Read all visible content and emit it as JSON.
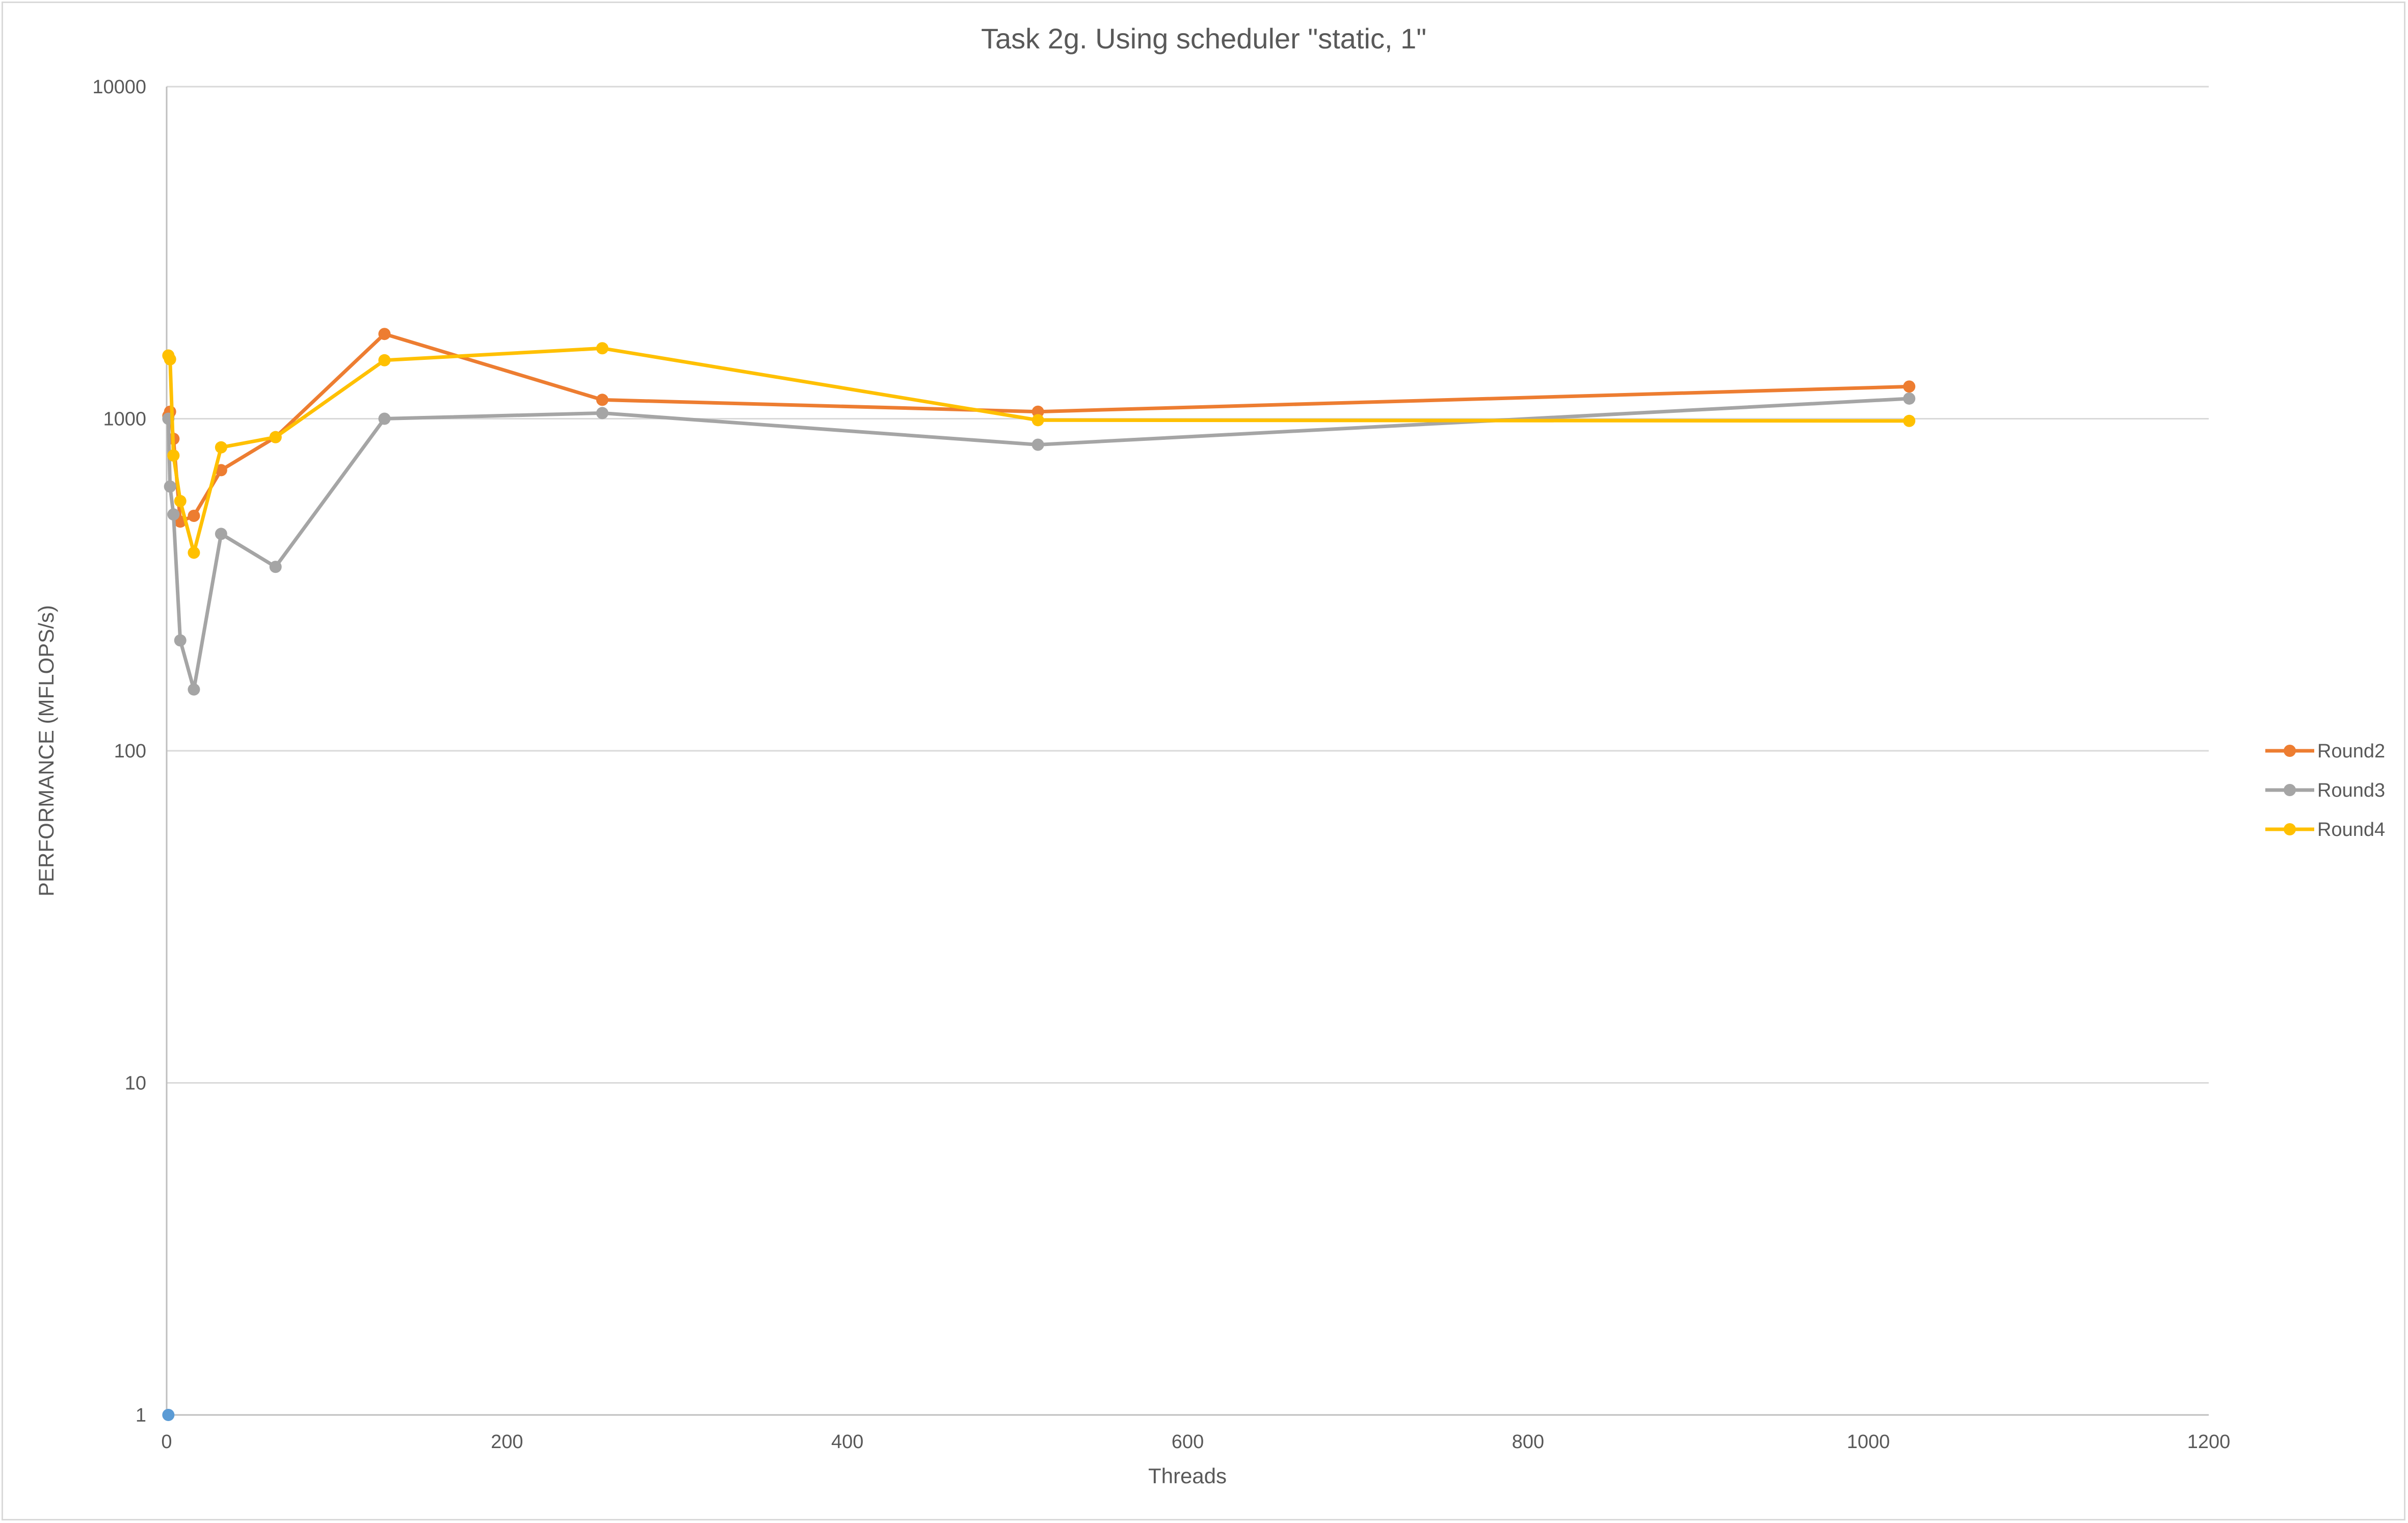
{
  "chart_data": {
    "type": "scatter",
    "title": "Task 2g. Using scheduler \"static, 1\"",
    "xlabel": "Threads",
    "ylabel": "PERFORMANCE (MFLOPS/s)",
    "xlim": [
      0,
      1200
    ],
    "ylim": [
      1,
      10000
    ],
    "yscale": "log",
    "x_ticks": [
      "0",
      "200",
      "400",
      "600",
      "800",
      "1000",
      "1200"
    ],
    "y_ticks": [
      "1",
      "10",
      "100",
      "1000",
      "10000"
    ],
    "grid": "horizontal",
    "legend_position": "right",
    "marker_only_point": {
      "x": 1,
      "y": 1,
      "color": "#5b9bd5"
    },
    "series": [
      {
        "name": "Round2",
        "color": "#ed7d31",
        "x": [
          1,
          2,
          4,
          8,
          16,
          32,
          64,
          128,
          256,
          512,
          1024
        ],
        "y": [
          1020,
          1050,
          870,
          490,
          510,
          700,
          880,
          1800,
          1140,
          1050,
          1250
        ]
      },
      {
        "name": "Round3",
        "color": "#a5a5a5",
        "x": [
          1,
          2,
          4,
          8,
          16,
          32,
          64,
          128,
          256,
          512,
          1024
        ],
        "y": [
          1000,
          625,
          515,
          215,
          153,
          450,
          358,
          1000,
          1040,
          835,
          1150
        ]
      },
      {
        "name": "Round4",
        "color": "#ffc000",
        "x": [
          1,
          2,
          4,
          8,
          16,
          32,
          64,
          128,
          256,
          512,
          1024
        ],
        "y": [
          1550,
          1510,
          775,
          565,
          395,
          820,
          880,
          1500,
          1630,
          990,
          985
        ]
      }
    ]
  }
}
